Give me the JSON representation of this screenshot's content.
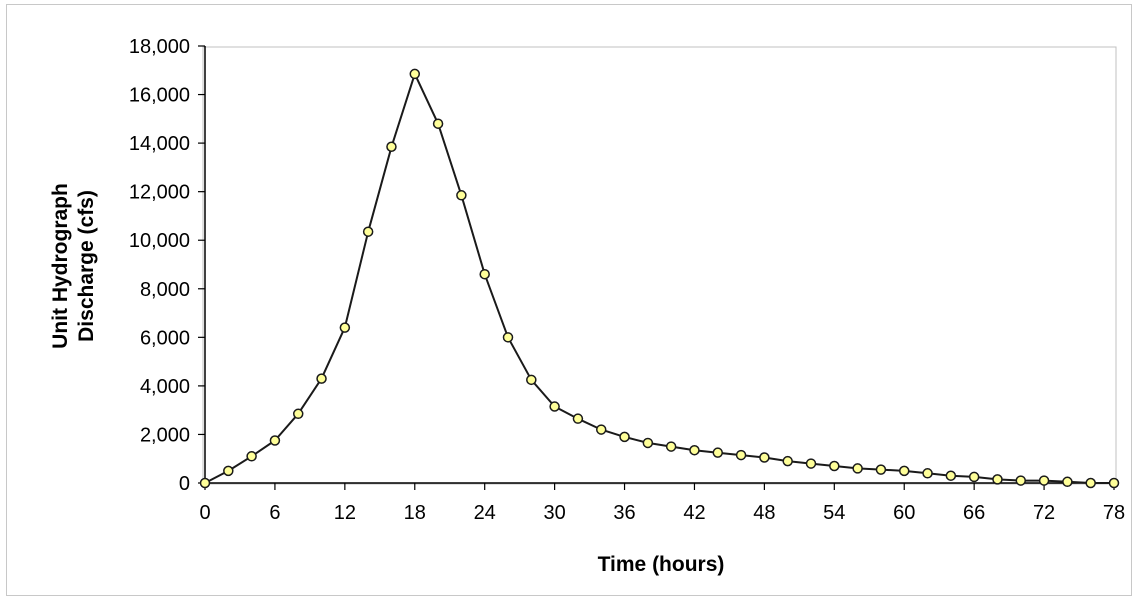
{
  "chart_data": {
    "type": "line",
    "title": "",
    "xlabel": "Time (hours)",
    "ylabel_lines": [
      "Unit Hydrograph",
      "Discharge (cfs)"
    ],
    "xlim": [
      0,
      78
    ],
    "ylim": [
      0,
      18000
    ],
    "x_ticks": [
      0,
      6,
      12,
      18,
      24,
      30,
      36,
      42,
      48,
      54,
      60,
      66,
      72,
      78
    ],
    "x_tick_labels": [
      "0",
      "6",
      "12",
      "18",
      "24",
      "30",
      "36",
      "42",
      "48",
      "54",
      "60",
      "66",
      "72",
      "78"
    ],
    "y_ticks": [
      0,
      2000,
      4000,
      6000,
      8000,
      10000,
      12000,
      14000,
      16000,
      18000
    ],
    "y_tick_labels": [
      "0",
      "2,000",
      "4,000",
      "6,000",
      "8,000",
      "10,000",
      "12,000",
      "14,000",
      "16,000",
      "18,000"
    ],
    "grid": "off",
    "legend": "none",
    "series": [
      {
        "x": [
          0,
          2,
          4,
          6,
          8,
          10,
          12,
          14,
          16,
          18,
          20,
          22,
          24,
          26,
          28,
          30,
          32,
          34,
          36,
          38,
          40,
          42,
          44,
          46,
          48,
          50,
          52,
          54,
          56,
          58,
          60,
          62,
          64,
          66,
          68,
          70,
          72,
          74,
          76,
          78
        ],
        "values": [
          0,
          500,
          1100,
          1750,
          2850,
          4300,
          6400,
          10350,
          13850,
          16850,
          14800,
          11850,
          8600,
          6000,
          4250,
          3150,
          2650,
          2200,
          1900,
          1650,
          1500,
          1350,
          1250,
          1150,
          1050,
          900,
          800,
          700,
          600,
          550,
          500,
          400,
          300,
          250,
          150,
          100,
          100,
          50,
          0,
          0
        ]
      }
    ],
    "colors": {
      "line": "#1a1a1a",
      "marker_fill": "#ffff99",
      "marker_stroke": "#1a1a1a",
      "axis": "#000000",
      "plot_border": "#c0c0c0"
    }
  }
}
